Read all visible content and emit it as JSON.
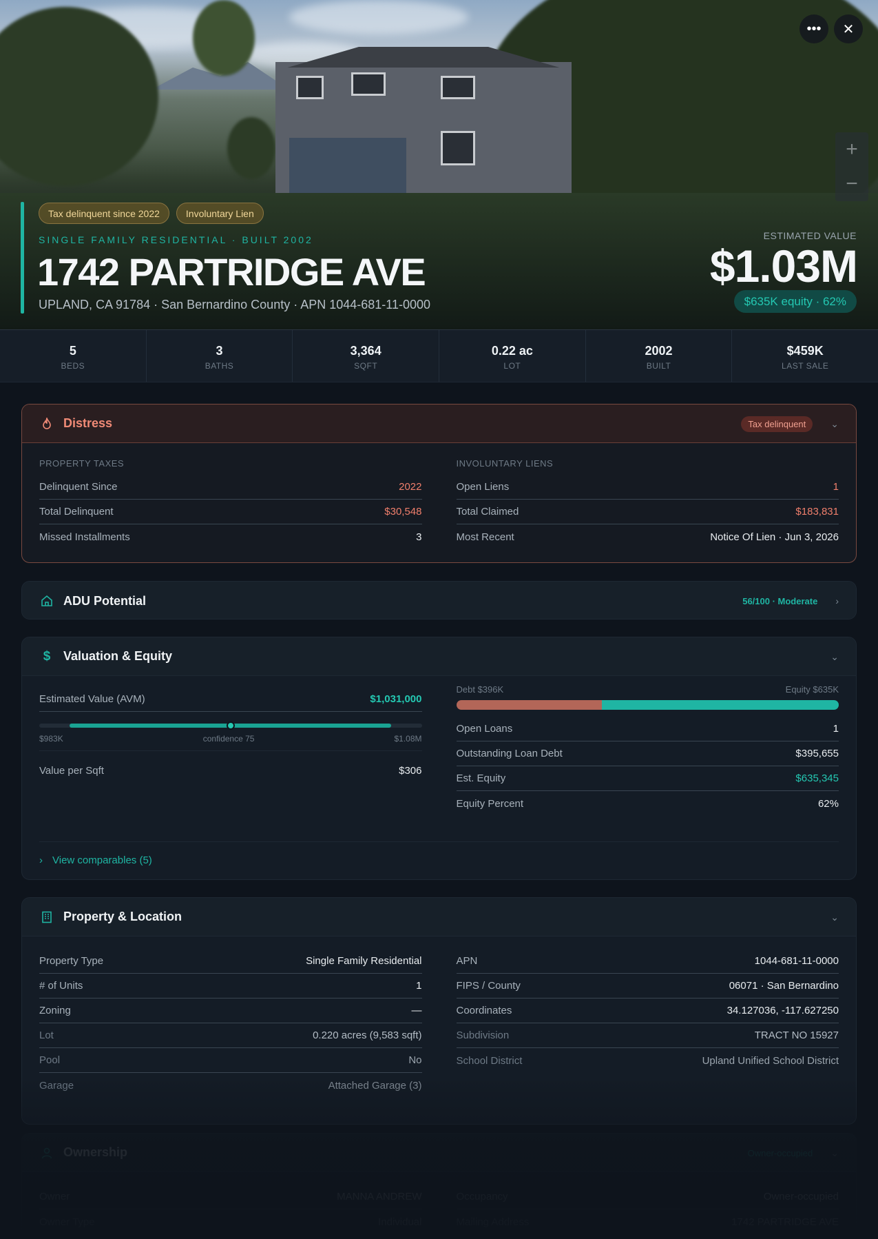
{
  "hero": {
    "tags": [
      "Tax delinquent since 2022",
      "Involuntary Lien"
    ],
    "subtitle": "SINGLE FAMILY RESIDENTIAL · BUILT 2002",
    "address": "1742 PARTRIDGE AVE",
    "location": "UPLAND, CA 91784 · San Bernardino County · APN 1044-681-11-0000",
    "estimated_value_label": "ESTIMATED VALUE",
    "estimated_value": "$1.03M",
    "equity_pill": "$635K equity · 62%",
    "more_icon": "ellipsis-icon",
    "close_icon": "close-icon",
    "zoom_in": "+",
    "zoom_out": "−"
  },
  "stats": [
    {
      "value": "5",
      "label": "BEDS"
    },
    {
      "value": "3",
      "label": "BATHS"
    },
    {
      "value": "3,364",
      "label": "SQFT"
    },
    {
      "value": "0.22 ac",
      "label": "LOT"
    },
    {
      "value": "2002",
      "label": "BUILT"
    },
    {
      "value": "$459K",
      "label": "LAST SALE"
    }
  ],
  "distress": {
    "title": "Distress",
    "badge": "Tax delinquent",
    "left": {
      "label": "PROPERTY TAXES",
      "rows": [
        {
          "k": "Delinquent Since",
          "v": "2022"
        },
        {
          "k": "Total Delinquent",
          "v": "$30,548"
        },
        {
          "k": "Missed Installments",
          "v": "3"
        }
      ]
    },
    "right": {
      "label": "INVOLUNTARY LIENS",
      "rows": [
        {
          "k": "Open Liens",
          "v": "1"
        },
        {
          "k": "Total Claimed",
          "v": "$183,831"
        },
        {
          "k": "Most Recent",
          "v": "Notice Of Lien · Jun 3, 2026"
        }
      ]
    }
  },
  "adu": {
    "title": "ADU Potential",
    "badge": "56/100 · Moderate"
  },
  "valuation": {
    "title": "Valuation & Equity",
    "avm_label": "Estimated Value (AVM)",
    "avm_value": "$1,031,000",
    "range_low": "$983K",
    "confidence": "confidence 75",
    "range_high": "$1.08M",
    "range_fill_start": 0.08,
    "range_fill_end": 0.92,
    "avm_position": 0.5,
    "vps_label": "Value per Sqft",
    "vps_value": "$306",
    "debt_label": "Debt $396K",
    "equity_label": "Equity $635K",
    "debt_fraction": 0.38,
    "rows": [
      {
        "k": "Open Loans",
        "v": "1"
      },
      {
        "k": "Outstanding Loan Debt",
        "v": "$395,655"
      },
      {
        "k": "Est. Equity",
        "v": "$635,345"
      },
      {
        "k": "Equity Percent",
        "v": "62%"
      }
    ],
    "comparables": "View comparables (5)"
  },
  "property": {
    "title": "Property & Location",
    "left": [
      {
        "k": "Property Type",
        "v": "Single Family Residential"
      },
      {
        "k": "# of Units",
        "v": "1"
      },
      {
        "k": "Zoning",
        "v": "—"
      },
      {
        "k": "Lot",
        "v": "0.220 acres (9,583 sqft)"
      },
      {
        "k": "Pool",
        "v": "No"
      },
      {
        "k": "Garage",
        "v": "Attached Garage (3)"
      }
    ],
    "right": [
      {
        "k": "APN",
        "v": "1044-681-11-0000"
      },
      {
        "k": "FIPS / County",
        "v": "06071 · San Bernardino"
      },
      {
        "k": "Coordinates",
        "v": "34.127036, -117.627250"
      },
      {
        "k": "Subdivision",
        "v": "TRACT NO 15927"
      },
      {
        "k": "School District",
        "v": "Upland Unified School District"
      }
    ]
  },
  "ownership": {
    "title": "Ownership",
    "badge": "Owner-occupied",
    "left": [
      {
        "k": "Owner",
        "v": "MANNA ANDREW"
      },
      {
        "k": "Owner Type",
        "v": "Individual"
      }
    ],
    "right": [
      {
        "k": "Occupancy",
        "v": "Owner-occupied"
      },
      {
        "k": "Mailing Address",
        "v": "1742 PARTRIDGE AVE"
      }
    ]
  },
  "colors": {
    "accent": "#1fb5a3",
    "distress": "#f08a76",
    "debt": "#b36658",
    "background": "#0e141c"
  }
}
